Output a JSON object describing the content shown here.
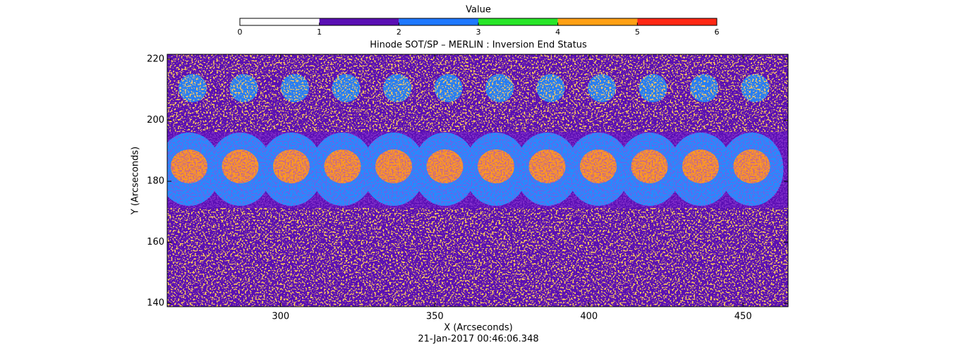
{
  "chart_data": {
    "type": "image",
    "title": "Hinode SOT/SP – MERLIN : Inversion End Status",
    "x_label": "X (Arcseconds)",
    "y_label": "Y (Arcseconds)",
    "subtitle": "21-Jan-2017 00:46:06.348",
    "xlim": [
      263.2,
      464.6
    ],
    "xticks": [
      300,
      350,
      400,
      450
    ],
    "ylim": [
      138.9,
      221.6
    ],
    "yticks": [
      140,
      160,
      180,
      200,
      220
    ],
    "colorbar": {
      "label": "Value",
      "lim": [
        0,
        6
      ],
      "ticks": [
        0,
        1,
        2,
        3,
        4,
        5,
        6
      ],
      "colors": [
        "#ffffff",
        "#5a0fb4",
        "#1e78ff",
        "#28e628",
        "#ffa014",
        "#ff2814"
      ]
    }
  }
}
